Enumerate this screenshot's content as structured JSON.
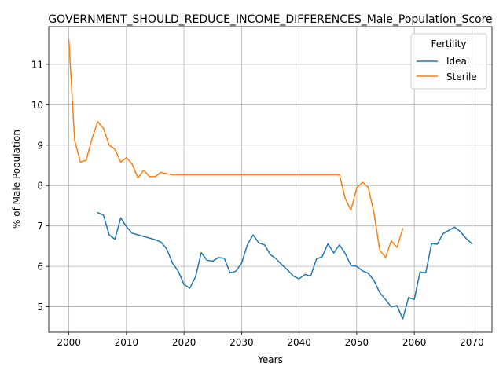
{
  "chart_data": {
    "type": "line",
    "title": "GOVERNMENT_SHOULD_REDUCE_INCOME_DIFFERENCES_Male_Population_Score",
    "xlabel": "Years",
    "ylabel": "% of Male Population",
    "xlim": [
      1996.5,
      2073.5
    ],
    "ylim": [
      4.37,
      11.93
    ],
    "xticks": [
      2000,
      2010,
      2020,
      2030,
      2040,
      2050,
      2060,
      2070
    ],
    "yticks": [
      5,
      6,
      7,
      8,
      9,
      10,
      11
    ],
    "grid": true,
    "legend": {
      "title": "Fertility",
      "placement": "top-right"
    },
    "series": [
      {
        "name": "Ideal",
        "color": "#1f77b4",
        "x": [
          2005,
          2006,
          2007,
          2008,
          2009,
          2010,
          2011,
          2012,
          2013,
          2014,
          2015,
          2016,
          2017,
          2018,
          2019,
          2020,
          2021,
          2022,
          2023,
          2024,
          2025,
          2026,
          2027,
          2028,
          2029,
          2030,
          2031,
          2032,
          2033,
          2034,
          2035,
          2036,
          2037,
          2038,
          2039,
          2040,
          2041,
          2042,
          2043,
          2044,
          2045,
          2046,
          2047,
          2048,
          2049,
          2050,
          2051,
          2052,
          2053,
          2054,
          2055,
          2056,
          2057,
          2058,
          2059,
          2060,
          2061,
          2062,
          2063,
          2064,
          2065,
          2066,
          2067,
          2068,
          2069,
          2070
        ],
        "y": [
          7.33,
          7.27,
          6.78,
          6.67,
          7.2,
          6.98,
          6.82,
          6.78,
          6.74,
          6.7,
          6.66,
          6.6,
          6.43,
          6.08,
          5.88,
          5.55,
          5.46,
          5.74,
          6.34,
          6.15,
          6.13,
          6.22,
          6.2,
          5.84,
          5.88,
          6.08,
          6.53,
          6.78,
          6.58,
          6.53,
          6.29,
          6.19,
          6.04,
          5.91,
          5.76,
          5.69,
          5.8,
          5.76,
          6.18,
          6.24,
          6.56,
          6.33,
          6.53,
          6.32,
          6.02,
          6.0,
          5.89,
          5.83,
          5.65,
          5.35,
          5.18,
          5.0,
          5.03,
          4.7,
          5.23,
          5.18,
          5.86,
          5.84,
          6.56,
          6.55,
          6.81,
          6.89,
          6.97,
          6.86,
          6.69,
          6.56
        ]
      },
      {
        "name": "Sterile",
        "color": "#ff7f0e",
        "x": [
          2000,
          2001,
          2002,
          2003,
          2004,
          2005,
          2006,
          2007,
          2008,
          2009,
          2010,
          2011,
          2012,
          2013,
          2014,
          2015,
          2016,
          2017,
          2018,
          2019,
          2020,
          2021,
          2022,
          2023,
          2024,
          2025,
          2026,
          2027,
          2028,
          2029,
          2030,
          2031,
          2032,
          2033,
          2034,
          2035,
          2036,
          2037,
          2038,
          2039,
          2040,
          2041,
          2042,
          2043,
          2044,
          2045,
          2046,
          2047,
          2048,
          2049,
          2050,
          2051,
          2052,
          2053,
          2054,
          2055,
          2056,
          2057,
          2058
        ],
        "y": [
          11.6,
          9.12,
          8.58,
          8.63,
          9.15,
          9.58,
          9.42,
          9.0,
          8.9,
          8.58,
          8.69,
          8.53,
          8.19,
          8.38,
          8.22,
          8.22,
          8.33,
          8.29,
          8.27,
          8.27,
          8.27,
          8.27,
          8.27,
          8.27,
          8.27,
          8.27,
          8.27,
          8.27,
          8.27,
          8.27,
          8.27,
          8.27,
          8.27,
          8.27,
          8.27,
          8.27,
          8.27,
          8.27,
          8.27,
          8.27,
          8.27,
          8.27,
          8.27,
          8.27,
          8.27,
          8.27,
          8.27,
          8.27,
          7.68,
          7.39,
          7.94,
          8.08,
          7.96,
          7.32,
          6.4,
          6.22,
          6.63,
          6.47,
          6.93
        ]
      }
    ]
  }
}
